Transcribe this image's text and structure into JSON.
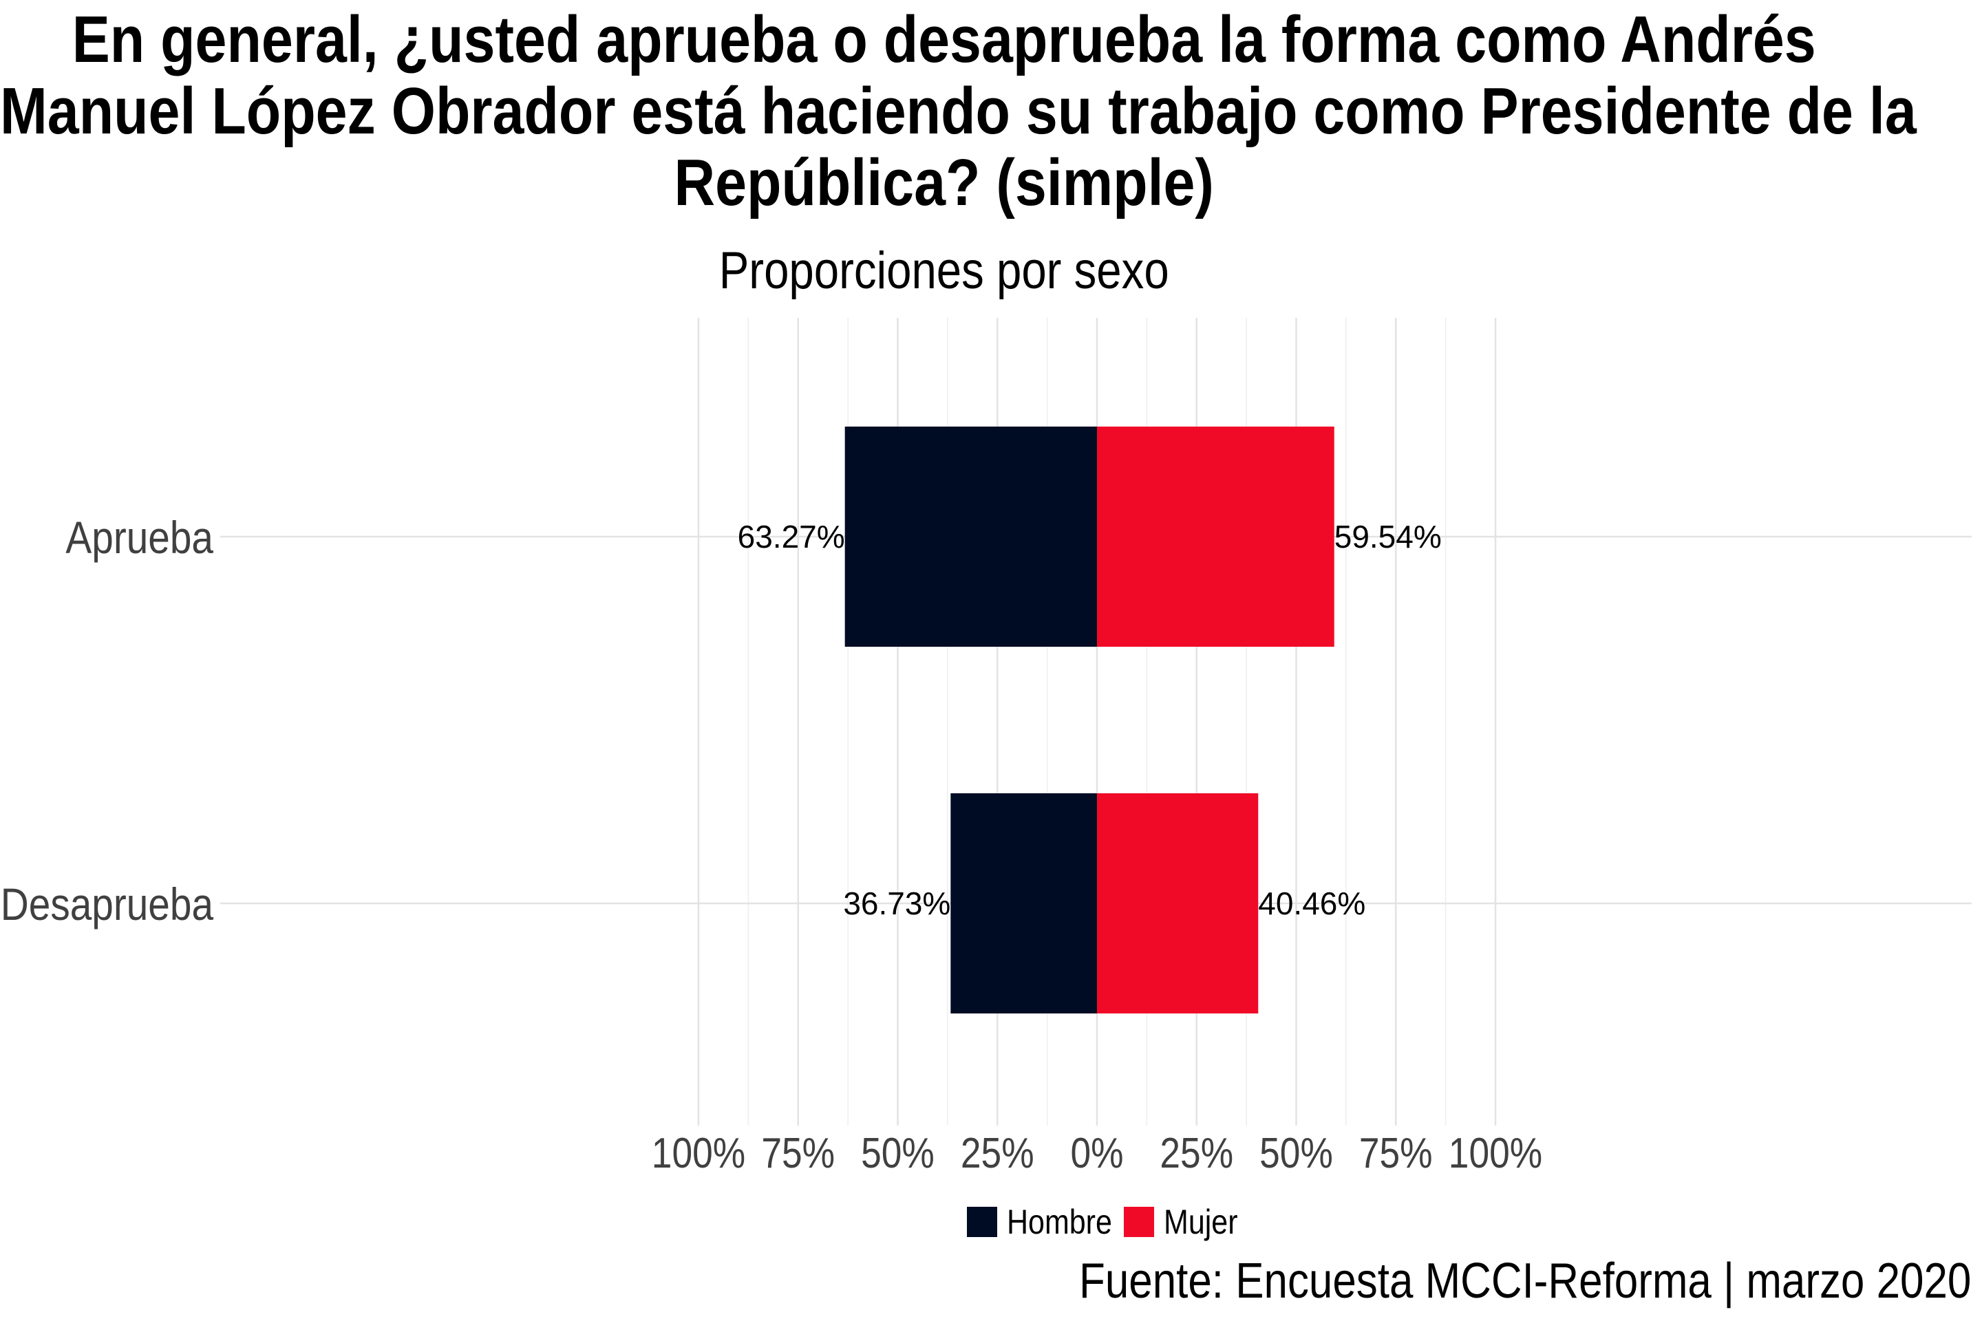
{
  "chart_data": {
    "type": "bar",
    "orientation": "horizontal-diverging",
    "title_lines": [
      "En general, ¿usted aprueba o desaprueba la forma como Andrés",
      "Manuel López Obrador está haciendo su trabajo como Presidente de la",
      "República? (simple)"
    ],
    "subtitle": "Proporciones por sexo",
    "caption": "Fuente: Encuesta MCCI-Reforma | marzo 2020",
    "categories": [
      "Aprueba",
      "Desaprueba"
    ],
    "series": [
      {
        "name": "Hombre",
        "color": "#000b24",
        "side": "left",
        "values": [
          63.27,
          36.73
        ],
        "labels": [
          "63.27%",
          "36.73%"
        ]
      },
      {
        "name": "Mujer",
        "color": "#f00a28",
        "side": "right",
        "values": [
          59.54,
          40.46
        ],
        "labels": [
          "59.54%",
          "40.46%"
        ]
      }
    ],
    "xlim": [
      -100,
      100
    ],
    "x_ticks": [
      -100,
      -75,
      -50,
      -25,
      0,
      25,
      50,
      75,
      100
    ],
    "x_tick_labels": [
      "100%",
      "75%",
      "50%",
      "25%",
      "0%",
      "25%",
      "50%",
      "75%",
      "100%"
    ],
    "grid": true,
    "legend_position": "bottom"
  }
}
